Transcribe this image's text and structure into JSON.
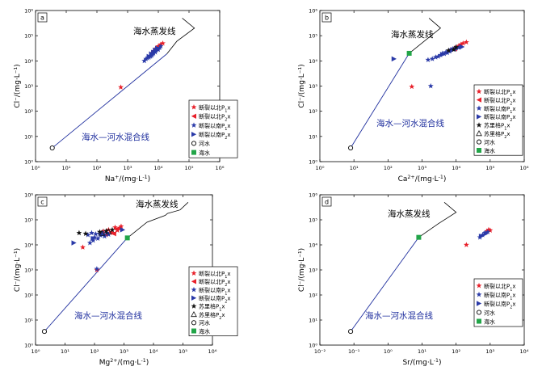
{
  "colors": {
    "axis": "#000000",
    "mixing_line": "#1f2f9e",
    "north_p1x": "#e8202a",
    "north_p2x": "#e8202a",
    "south_p1x": "#2a3aa8",
    "south_p2x": "#2a3aa8",
    "sulige_p1x": "#111111",
    "sulige_p2x": "#111111",
    "seawater": "#22a548",
    "river": "#000000"
  },
  "icons": {
    "north_p1x": "star-icon",
    "north_p2x": "left-triangle-icon",
    "south_p1x": "star-icon",
    "south_p2x": "right-triangle-icon",
    "sulige_p1x": "star-icon",
    "sulige_p2x": "open-triangle-icon",
    "river": "open-circle-icon",
    "seawater": "filled-square-icon"
  },
  "chart_data": [
    {
      "id": "a",
      "panel_label": "a",
      "type": "scatter",
      "log_scale": true,
      "xlabel_main": "Na",
      "xlabel_sup": "+",
      "xlabel_tail": "/(mg·L",
      "xlabel_tail_sup": "-1",
      "xlabel_end": ")",
      "ylabel": "Cl⁻/(mg·L⁻¹)",
      "xlim": [
        1,
        1000000
      ],
      "ylim": [
        1,
        1000000
      ],
      "x_ticks": [
        "10⁰",
        "10¹",
        "10²",
        "10³",
        "10⁴",
        "10⁵",
        "10⁶"
      ],
      "y_ticks": [
        "10⁰",
        "10¹",
        "10²",
        "10³",
        "10⁴",
        "10⁵",
        "10⁶"
      ],
      "mixing_line_label": "海水—河水混合线",
      "evap_label": "海水蒸发线",
      "mixing_line": [
        [
          3.5,
          3.5
        ],
        [
          19000,
          19000
        ]
      ],
      "evap_line": [
        [
          19000,
          19000
        ],
        [
          40000,
          60000
        ],
        [
          150000,
          200000
        ],
        [
          60000,
          500000
        ]
      ],
      "legend": [
        {
          "label": "断裂以北P",
          "sub": "1",
          "tail": "x",
          "key": "north_p1x"
        },
        {
          "label": "断裂以北P",
          "sub": "2",
          "tail": "x",
          "key": "north_p2x"
        },
        {
          "label": "断裂以南P",
          "sub": "1",
          "tail": "x",
          "key": "south_p1x"
        },
        {
          "label": "断裂以南P",
          "sub": "2",
          "tail": "x",
          "key": "south_p2x"
        },
        {
          "label": "河水",
          "sub": "",
          "tail": "",
          "key": "river"
        },
        {
          "label": "海水",
          "sub": "",
          "tail": "",
          "key": "seawater"
        }
      ],
      "series": [
        {
          "key": "north_p1x",
          "points": [
            [
              600,
              900
            ],
            [
              8000,
              30000
            ],
            [
              12000,
              45000
            ],
            [
              6000,
              20000
            ],
            [
              10000,
              38000
            ],
            [
              14000,
              50000
            ]
          ]
        },
        {
          "key": "north_p2x",
          "points": [
            [
              9000,
              30000
            ],
            [
              7000,
              25000
            ],
            [
              11000,
              40000
            ]
          ]
        },
        {
          "key": "south_p1x",
          "points": [
            [
              4000,
              12000
            ],
            [
              6000,
              16000
            ],
            [
              8000,
              22000
            ],
            [
              5000,
              14000
            ],
            [
              9000,
              30000
            ],
            [
              7000,
              20000
            ],
            [
              12000,
              38000
            ],
            [
              3500,
              10000
            ],
            [
              10000,
              28000
            ],
            [
              6500,
              18000
            ],
            [
              11000,
              33000
            ],
            [
              8500,
              26000
            ],
            [
              5500,
              15000
            ],
            [
              7500,
              24000
            ],
            [
              4500,
              13000
            ]
          ]
        },
        {
          "key": "south_p2x",
          "points": [
            [
              5000,
              15000
            ],
            [
              7000,
              22000
            ],
            [
              9500,
              32000
            ],
            [
              6000,
              19000
            ],
            [
              8000,
              27000
            ]
          ]
        },
        {
          "key": "river",
          "points": [
            [
              3.5,
              3.5
            ]
          ]
        },
        {
          "key": "seawater",
          "points": []
        }
      ]
    },
    {
      "id": "b",
      "panel_label": "b",
      "type": "scatter",
      "log_scale": true,
      "xlabel_main": "Ca",
      "xlabel_sup": "2+",
      "xlabel_tail": "/(mg·L",
      "xlabel_tail_sup": "-1",
      "xlabel_end": ")",
      "ylabel": "Cl⁻/(mg·L⁻¹)",
      "xlim": [
        1,
        1000000
      ],
      "ylim": [
        1,
        1000000
      ],
      "x_ticks": [
        "10⁰",
        "10¹",
        "10²",
        "10³",
        "10⁴",
        "10⁵",
        "10⁶"
      ],
      "y_ticks": [
        "10⁰",
        "10¹",
        "10²",
        "10³",
        "10⁴",
        "10⁵",
        "10⁶"
      ],
      "mixing_line_label": "海水—河水混合线",
      "evap_label": "海水蒸发线",
      "mixing_line": [
        [
          8,
          3.5
        ],
        [
          420,
          20000
        ]
      ],
      "evap_line": [
        [
          420,
          20000
        ],
        [
          1500,
          80000
        ],
        [
          3500,
          200000
        ],
        [
          1600,
          500000
        ]
      ],
      "legend": [
        {
          "label": "断裂以北P",
          "sub": "1",
          "tail": "x",
          "key": "north_p1x"
        },
        {
          "label": "断裂以北P",
          "sub": "2",
          "tail": "x",
          "key": "north_p2x"
        },
        {
          "label": "断裂以南P",
          "sub": "1",
          "tail": "x",
          "key": "south_p1x"
        },
        {
          "label": "断裂以南P",
          "sub": "2",
          "tail": "x",
          "key": "south_p2x"
        },
        {
          "label": "苏里格P",
          "sub": "1",
          "tail": "x",
          "key": "sulige_p1x"
        },
        {
          "label": "苏里格P",
          "sub": "2",
          "tail": "x",
          "key": "sulige_p2x"
        },
        {
          "label": "河水",
          "sub": "",
          "tail": "",
          "key": "river"
        },
        {
          "label": "海水",
          "sub": "",
          "tail": "",
          "key": "seawater"
        }
      ],
      "series": [
        {
          "key": "north_p1x",
          "points": [
            [
              500,
              950
            ],
            [
              12000,
              40000
            ],
            [
              16000,
              50000
            ],
            [
              9000,
              32000
            ],
            [
              14000,
              45000
            ],
            [
              20000,
              55000
            ],
            [
              7000,
              28000
            ]
          ]
        },
        {
          "key": "north_p2x",
          "points": [
            [
              13000,
              42000
            ],
            [
              11000,
              36000
            ],
            [
              9000,
              30000
            ]
          ]
        },
        {
          "key": "south_p1x",
          "points": [
            [
              1800,
              1000
            ],
            [
              2000,
              12000
            ],
            [
              3000,
              15000
            ],
            [
              4000,
              20000
            ],
            [
              5000,
              22000
            ],
            [
              6000,
              25000
            ],
            [
              7000,
              28000
            ],
            [
              8000,
              30000
            ],
            [
              10000,
              32000
            ],
            [
              2500,
              14000
            ],
            [
              3500,
              17000
            ],
            [
              4500,
              19000
            ],
            [
              6500,
              24000
            ],
            [
              9000,
              29000
            ],
            [
              1500,
              11000
            ],
            [
              12000,
              34000
            ],
            [
              5500,
              21000
            ]
          ]
        },
        {
          "key": "south_p2x",
          "points": [
            [
              150,
              12000
            ],
            [
              4000,
              18000
            ],
            [
              8000,
              27000
            ],
            [
              11000,
              33000
            ],
            [
              15000,
              36000
            ]
          ]
        },
        {
          "key": "sulige_p1x",
          "points": [
            [
              6000,
              26000
            ],
            [
              8500,
              28000
            ],
            [
              10000,
              35000
            ]
          ]
        },
        {
          "key": "sulige_p2x",
          "points": []
        },
        {
          "key": "river",
          "points": [
            [
              8,
              3.5
            ]
          ]
        },
        {
          "key": "seawater",
          "points": [
            [
              420,
              20000
            ]
          ]
        }
      ]
    },
    {
      "id": "c",
      "panel_label": "c",
      "type": "scatter",
      "log_scale": true,
      "xlabel_main": "Mg",
      "xlabel_sup": "2+",
      "xlabel_tail": "/(mg·L",
      "xlabel_tail_sup": "-1",
      "xlabel_end": ")",
      "ylabel": "Cl⁻/(mg·L⁻¹)",
      "xlim": [
        1,
        1000000
      ],
      "ylim": [
        1,
        1000000
      ],
      "x_ticks": [
        "10⁰",
        "10¹",
        "10²",
        "10³",
        "10⁴",
        "10⁵",
        "10⁶"
      ],
      "y_ticks": [
        "10⁰",
        "10¹",
        "10²",
        "10³",
        "10⁴",
        "10⁵",
        "10⁶"
      ],
      "mixing_line_label": "海水—河水混合线",
      "evap_label": "海水蒸发线",
      "mixing_line": [
        [
          2,
          3.5
        ],
        [
          1300,
          19000
        ]
      ],
      "evap_line": [
        [
          1300,
          19000
        ],
        [
          6000,
          80000
        ],
        [
          25000,
          150000
        ],
        [
          30000,
          180000
        ],
        [
          80000,
          250000
        ],
        [
          150000,
          500000
        ]
      ],
      "legend": [
        {
          "label": "断裂以北P",
          "sub": "1",
          "tail": "x",
          "key": "north_p1x"
        },
        {
          "label": "断裂以北P",
          "sub": "2",
          "tail": "x",
          "key": "north_p2x"
        },
        {
          "label": "断裂以南P",
          "sub": "1",
          "tail": "x",
          "key": "south_p1x"
        },
        {
          "label": "断裂以南P",
          "sub": "2",
          "tail": "x",
          "key": "south_p2x"
        },
        {
          "label": "苏里格P",
          "sub": "1",
          "tail": "x",
          "key": "sulige_p1x"
        },
        {
          "label": "苏里格P",
          "sub": "2",
          "tail": "x",
          "key": "sulige_p2x"
        },
        {
          "label": "河水",
          "sub": "",
          "tail": "",
          "key": "river"
        },
        {
          "label": "海水",
          "sub": "",
          "tail": "",
          "key": "seawater"
        }
      ],
      "series": [
        {
          "key": "north_p1x",
          "points": [
            [
              40,
              8000
            ],
            [
              120,
              1000
            ],
            [
              300,
              40000
            ],
            [
              500,
              50000
            ],
            [
              200,
              35000
            ],
            [
              700,
              45000
            ],
            [
              400,
              30000
            ],
            [
              600,
              38000
            ],
            [
              250,
              25000
            ],
            [
              800,
              55000
            ]
          ]
        },
        {
          "key": "north_p2x",
          "points": [
            [
              350,
              32000
            ],
            [
              550,
              42000
            ],
            [
              450,
              28000
            ]
          ]
        },
        {
          "key": "south_p1x",
          "points": [
            [
              120,
              1100
            ],
            [
              60,
              25000
            ],
            [
              80,
              30000
            ],
            [
              100,
              20000
            ],
            [
              150,
              28000
            ],
            [
              180,
              32000
            ],
            [
              220,
              22000
            ],
            [
              300,
              26000
            ],
            [
              90,
              15000
            ],
            [
              130,
              18000
            ],
            [
              260,
              30000
            ],
            [
              160,
              24000
            ],
            [
              70,
              12000
            ],
            [
              110,
              27000
            ]
          ]
        },
        {
          "key": "south_p2x",
          "points": [
            [
              20,
              12000
            ],
            [
              90,
              18000
            ],
            [
              200,
              27000
            ],
            [
              900,
              40000
            ]
          ]
        },
        {
          "key": "sulige_p1x",
          "points": [
            [
              30,
              30000
            ],
            [
              50,
              28000
            ],
            [
              150,
              33000
            ],
            [
              250,
              36000
            ],
            [
              400,
              40000
            ]
          ]
        },
        {
          "key": "sulige_p2x",
          "points": [
            [
              300,
              34000
            ],
            [
              180,
              29000
            ]
          ]
        },
        {
          "key": "river",
          "points": [
            [
              2,
              3.5
            ]
          ]
        },
        {
          "key": "seawater",
          "points": [
            [
              1300,
              19000
            ]
          ]
        }
      ]
    },
    {
      "id": "d",
      "panel_label": "d",
      "type": "scatter",
      "log_scale": true,
      "xlabel_main": "Sr",
      "xlabel_sup": "",
      "xlabel_tail": "/(mg·L",
      "xlabel_tail_sup": "-1",
      "xlabel_end": ")",
      "ylabel": "Cl⁻/(mg·L⁻¹)",
      "xlim": [
        0.01,
        10000
      ],
      "ylim": [
        1,
        1000000
      ],
      "x_ticks": [
        "10⁻²",
        "10⁻¹",
        "10⁰",
        "10¹",
        "10²",
        "10³",
        "10⁴"
      ],
      "y_ticks": [
        "10⁰",
        "10¹",
        "10²",
        "10³",
        "10⁴",
        "10⁵",
        "10⁶"
      ],
      "mixing_line_label": "海水—河水混合线",
      "evap_label": "海水蒸发线",
      "mixing_line": [
        [
          0.08,
          3.5
        ],
        [
          8,
          20000
        ]
      ],
      "evap_line": [
        [
          8,
          20000
        ],
        [
          30,
          70000
        ],
        [
          100,
          200000
        ],
        [
          45,
          500000
        ]
      ],
      "legend": [
        {
          "label": "断裂以北P",
          "sub": "1",
          "tail": "x",
          "key": "north_p1x"
        },
        {
          "label": "断裂以南P",
          "sub": "1",
          "tail": "x",
          "key": "south_p1x"
        },
        {
          "label": "断裂以南P",
          "sub": "2",
          "tail": "x",
          "key": "south_p2x"
        },
        {
          "label": "河水",
          "sub": "",
          "tail": "",
          "key": "river"
        },
        {
          "label": "海水",
          "sub": "",
          "tail": "",
          "key": "seawater"
        }
      ],
      "series": [
        {
          "key": "north_p1x",
          "points": [
            [
              200,
              10000
            ],
            [
              800,
              35000
            ],
            [
              900,
              40000
            ],
            [
              1000,
              38000
            ]
          ]
        },
        {
          "key": "south_p1x",
          "points": [
            [
              500,
              20000
            ],
            [
              600,
              25000
            ],
            [
              700,
              30000
            ],
            [
              850,
              33000
            ]
          ]
        },
        {
          "key": "south_p2x",
          "points": [
            [
              550,
              22000
            ],
            [
              750,
              28000
            ]
          ]
        },
        {
          "key": "river",
          "points": [
            [
              0.08,
              3.5
            ]
          ]
        },
        {
          "key": "seawater",
          "points": [
            [
              8,
              20000
            ]
          ]
        }
      ]
    }
  ]
}
